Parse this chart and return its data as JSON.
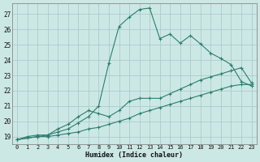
{
  "title": "",
  "xlabel": "Humidex (Indice chaleur)",
  "ylabel": "",
  "bg_color": "#cce8e5",
  "grid_color": "#aacccc",
  "line_color": "#2d7d6e",
  "xlim": [
    -0.5,
    23.5
  ],
  "ylim": [
    18.5,
    27.7
  ],
  "xticks": [
    0,
    1,
    2,
    3,
    4,
    5,
    6,
    7,
    8,
    9,
    10,
    11,
    12,
    13,
    14,
    15,
    16,
    17,
    18,
    19,
    20,
    21,
    22,
    23
  ],
  "yticks": [
    19,
    20,
    21,
    22,
    23,
    24,
    25,
    26,
    27
  ],
  "line1_x": [
    0,
    1,
    2,
    3,
    4,
    5,
    6,
    7,
    8,
    9,
    10,
    11,
    12,
    13,
    14,
    15,
    16,
    17,
    18,
    19,
    20,
    21,
    22,
    23
  ],
  "line1_y": [
    18.8,
    19.0,
    19.1,
    19.1,
    19.3,
    19.5,
    19.9,
    20.3,
    21.0,
    23.8,
    26.2,
    26.8,
    27.3,
    27.4,
    25.4,
    25.7,
    25.1,
    25.6,
    25.05,
    24.45,
    24.1,
    23.7,
    22.6,
    22.3
  ],
  "line2_x": [
    0,
    2,
    3,
    4,
    5,
    6,
    7,
    8,
    9,
    10,
    11,
    12,
    13,
    14,
    15,
    16,
    17,
    18,
    19,
    20,
    21,
    22,
    23
  ],
  "line2_y": [
    18.8,
    19.0,
    19.1,
    19.5,
    19.8,
    20.3,
    20.7,
    20.5,
    20.3,
    20.7,
    21.3,
    21.5,
    21.5,
    21.5,
    21.8,
    22.1,
    22.4,
    22.7,
    22.9,
    23.1,
    23.3,
    23.5,
    22.5
  ],
  "line3_x": [
    0,
    1,
    2,
    3,
    4,
    5,
    6,
    7,
    8,
    9,
    10,
    11,
    12,
    13,
    14,
    15,
    16,
    17,
    18,
    19,
    20,
    21,
    22,
    23
  ],
  "line3_y": [
    18.8,
    18.9,
    19.0,
    19.0,
    19.1,
    19.2,
    19.3,
    19.5,
    19.6,
    19.8,
    20.0,
    20.2,
    20.5,
    20.7,
    20.9,
    21.1,
    21.3,
    21.5,
    21.7,
    21.9,
    22.1,
    22.3,
    22.4,
    22.4
  ]
}
